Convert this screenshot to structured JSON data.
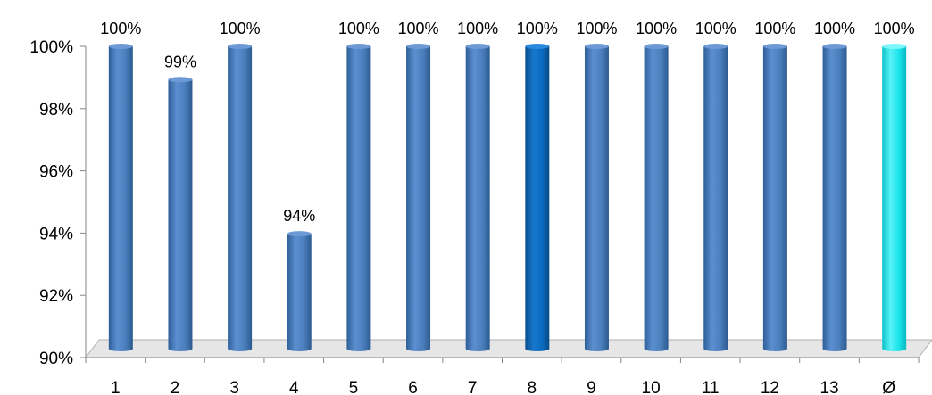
{
  "chart_data": {
    "type": "bar",
    "categories": [
      "1",
      "2",
      "3",
      "4",
      "5",
      "6",
      "7",
      "8",
      "9",
      "10",
      "11",
      "12",
      "13",
      "Ø"
    ],
    "values": [
      100,
      98.9,
      100,
      93.8,
      100,
      100,
      100,
      100,
      100,
      100,
      100,
      100,
      100,
      100
    ],
    "data_labels": [
      "100%",
      "99%",
      "100%",
      "94%",
      "100%",
      "100%",
      "100%",
      "100%",
      "100%",
      "100%",
      "100%",
      "100%",
      "100%",
      "100%"
    ],
    "y_ticks": [
      "90%",
      "92%",
      "94%",
      "96%",
      "98%",
      "100%"
    ],
    "ylim": [
      90,
      100
    ],
    "title": "",
    "xlabel": "",
    "ylabel": "",
    "grid": false,
    "legend": "none",
    "colors": {
      "default_bar": "#4a7ebb",
      "highlight_bar": "#0b6bbf",
      "average_bar": "#19e3ea",
      "floor": "#d9d9d9",
      "axis": "#868686"
    },
    "highlight_index": 7,
    "average_index": 13
  }
}
